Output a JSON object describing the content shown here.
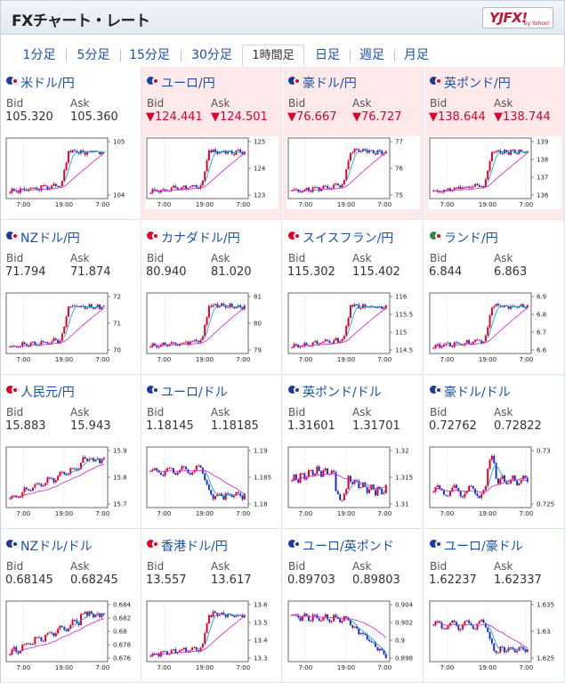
{
  "header": {
    "title": "FXチャート・レート",
    "logo_text": "YJFX!",
    "logo_sub": "by Yahoo!"
  },
  "tabs": [
    {
      "label": "1分足"
    },
    {
      "label": "5分足"
    },
    {
      "label": "15分足"
    },
    {
      "label": "30分足"
    },
    {
      "label": "1時間足"
    },
    {
      "label": "日足"
    },
    {
      "label": "週足"
    },
    {
      "label": "月足"
    }
  ],
  "labels": {
    "bid": "Bid",
    "ask": "Ask"
  },
  "colors": {
    "up": "#e0002a",
    "down": "#1a2fd0",
    "ma": "#cc22cc",
    "down_bg": "#fde8ea",
    "link": "#1a52a8"
  },
  "xticks": [
    "7:00",
    "19:00",
    "7:00"
  ],
  "pairs": [
    {
      "name": "米ドル/円",
      "bid": "105.320",
      "ask": "105.360",
      "down": false,
      "flag": "us-jp",
      "yticks": [
        "105",
        "104"
      ],
      "shape": "jump"
    },
    {
      "name": "ユーロ/円",
      "bid": "▼124.441",
      "ask": "▼124.501",
      "down": true,
      "flag": "eu-jp",
      "yticks": [
        "125",
        "124",
        "123"
      ],
      "shape": "jump"
    },
    {
      "name": "豪ドル/円",
      "bid": "▼76.667",
      "ask": "▼76.727",
      "down": true,
      "flag": "au-jp",
      "yticks": [
        "77",
        "76",
        "75"
      ],
      "shape": "jump"
    },
    {
      "name": "英ポンド/円",
      "bid": "▼138.644",
      "ask": "▼138.744",
      "down": true,
      "flag": "gb-jp",
      "yticks": [
        "139",
        "138",
        "137",
        "136"
      ],
      "shape": "jump"
    },
    {
      "name": "NZドル/円",
      "bid": "71.794",
      "ask": "71.874",
      "down": false,
      "flag": "nz-jp",
      "yticks": [
        "72",
        "71",
        "70"
      ],
      "shape": "jump"
    },
    {
      "name": "カナダドル/円",
      "bid": "80.940",
      "ask": "81.020",
      "down": false,
      "flag": "ca-jp",
      "yticks": [
        "81",
        "80",
        "79"
      ],
      "shape": "jump"
    },
    {
      "name": "スイスフラン/円",
      "bid": "115.302",
      "ask": "115.402",
      "down": false,
      "flag": "ch-jp",
      "yticks": [
        "116",
        "115.5",
        "115",
        "114.5"
      ],
      "shape": "jump"
    },
    {
      "name": "ランド/円",
      "bid": "6.844",
      "ask": "6.863",
      "down": false,
      "flag": "za-jp",
      "yticks": [
        "6.9",
        "6.8",
        "6.7",
        "6.6"
      ],
      "shape": "jump"
    },
    {
      "name": "人民元/円",
      "bid": "15.883",
      "ask": "15.943",
      "down": false,
      "flag": "cn-jp",
      "yticks": [
        "15.9",
        "15.8",
        "15.7"
      ],
      "shape": "rise"
    },
    {
      "name": "ユーロ/ドル",
      "bid": "1.18145",
      "ask": "1.18185",
      "down": false,
      "flag": "eu-us",
      "yticks": [
        "1.19",
        "1.185",
        "1.18"
      ],
      "shape": "drop"
    },
    {
      "name": "英ポンド/ドル",
      "bid": "1.31601",
      "ask": "1.31701",
      "down": false,
      "flag": "gb-us",
      "yticks": [
        "1.32",
        "1.315",
        "1.31"
      ],
      "shape": "flat"
    },
    {
      "name": "豪ドル/ドル",
      "bid": "0.72762",
      "ask": "0.72822",
      "down": false,
      "flag": "au-us",
      "yticks": [
        "0.73",
        "0.725"
      ],
      "shape": "spike"
    },
    {
      "name": "NZドル/ドル",
      "bid": "0.68145",
      "ask": "0.68245",
      "down": false,
      "flag": "nz-us",
      "yticks": [
        "0.684",
        "0.682",
        "0.68",
        "0.678",
        "0.676"
      ],
      "shape": "rise"
    },
    {
      "name": "香港ドル/円",
      "bid": "13.557",
      "ask": "13.617",
      "down": false,
      "flag": "hk-jp",
      "yticks": [
        "13.6",
        "13.5",
        "13.4",
        "13.3"
      ],
      "shape": "jump"
    },
    {
      "name": "ユーロ/英ポンド",
      "bid": "0.89703",
      "ask": "0.89803",
      "down": false,
      "flag": "eu-gb",
      "yticks": [
        "0.904",
        "0.902",
        "0.9",
        "0.898"
      ],
      "shape": "fall"
    },
    {
      "name": "ユーロ/豪ドル",
      "bid": "1.62237",
      "ask": "1.62337",
      "down": false,
      "flag": "eu-au",
      "yticks": [
        "1.635",
        "1.63",
        "1.625"
      ],
      "shape": "drop"
    }
  ]
}
